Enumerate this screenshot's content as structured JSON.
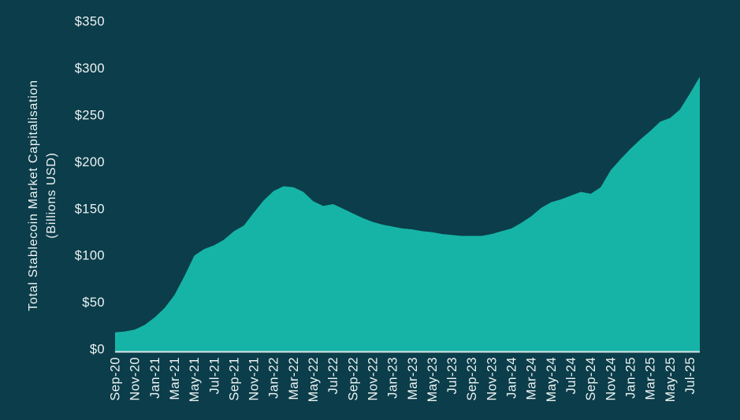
{
  "chart": {
    "y_axis_title_line1": "Total Stablecoin Market Capitalisation",
    "y_axis_title_line2": "(Billions USD)"
  },
  "chart_data": {
    "type": "area",
    "title": "",
    "xlabel": "",
    "ylabel": "Total Stablecoin Market Capitalisation (Billions USD)",
    "ylim": [
      0,
      350
    ],
    "grid": false,
    "legend": false,
    "background_color": "#0B3D4A",
    "area_color": "#16B4A6",
    "axis_line_color": "#D9E4E6",
    "text_color": "#EDF3F3",
    "ytick_values": [
      0,
      50,
      100,
      150,
      200,
      250,
      300,
      350
    ],
    "ytick_labels": [
      "$0",
      "$50",
      "$100",
      "$150",
      "$200",
      "$250",
      "$300",
      "$350"
    ],
    "x_tick_labels": [
      "Sep-20",
      "Nov-20",
      "Jan-21",
      "Mar-21",
      "May-21",
      "Jul-21",
      "Sep-21",
      "Nov-21",
      "Jan-22",
      "Mar-22",
      "May-22",
      "Jul-22",
      "Sep-22",
      "Nov-22",
      "Jan-23",
      "Mar-23",
      "May-23",
      "Jul-23",
      "Sep-23",
      "Nov-23",
      "Jan-24",
      "Mar-24",
      "May-24",
      "Jul-24",
      "Sep-24",
      "Nov-24",
      "Jan-25",
      "Mar-25",
      "May-25",
      "Jul-25"
    ],
    "x_months": [
      "Sep-20",
      "Oct-20",
      "Nov-20",
      "Dec-20",
      "Jan-21",
      "Feb-21",
      "Mar-21",
      "Apr-21",
      "May-21",
      "Jun-21",
      "Jul-21",
      "Aug-21",
      "Sep-21",
      "Oct-21",
      "Nov-21",
      "Dec-21",
      "Jan-22",
      "Feb-22",
      "Mar-22",
      "Apr-22",
      "May-22",
      "Jun-22",
      "Jul-22",
      "Aug-22",
      "Sep-22",
      "Oct-22",
      "Nov-22",
      "Dec-22",
      "Jan-23",
      "Feb-23",
      "Mar-23",
      "Apr-23",
      "May-23",
      "Jun-23",
      "Jul-23",
      "Aug-23",
      "Sep-23",
      "Oct-23",
      "Nov-23",
      "Dec-23",
      "Jan-24",
      "Feb-24",
      "Mar-24",
      "Apr-24",
      "May-24",
      "Jun-24",
      "Jul-24",
      "Aug-24",
      "Sep-24",
      "Oct-24",
      "Nov-24",
      "Dec-24",
      "Jan-25",
      "Feb-25",
      "Mar-25",
      "Apr-25",
      "May-25",
      "Jun-25",
      "Jul-25",
      "Aug-25"
    ],
    "series": [
      {
        "name": "Total stablecoin market capitalisation (Billions USD)",
        "values": [
          20,
          21,
          23,
          28,
          36,
          46,
          60,
          80,
          102,
          109,
          113,
          119,
          128,
          134,
          148,
          161,
          171,
          176,
          175,
          170,
          160,
          155,
          157,
          152,
          147,
          142,
          138,
          135,
          133,
          131,
          130,
          128,
          127,
          125,
          124,
          123,
          123,
          123,
          125,
          128,
          131,
          137,
          144,
          153,
          159,
          162,
          166,
          170,
          168,
          175,
          193,
          205,
          216,
          226,
          235,
          245,
          249,
          258,
          275,
          293
        ]
      }
    ]
  }
}
